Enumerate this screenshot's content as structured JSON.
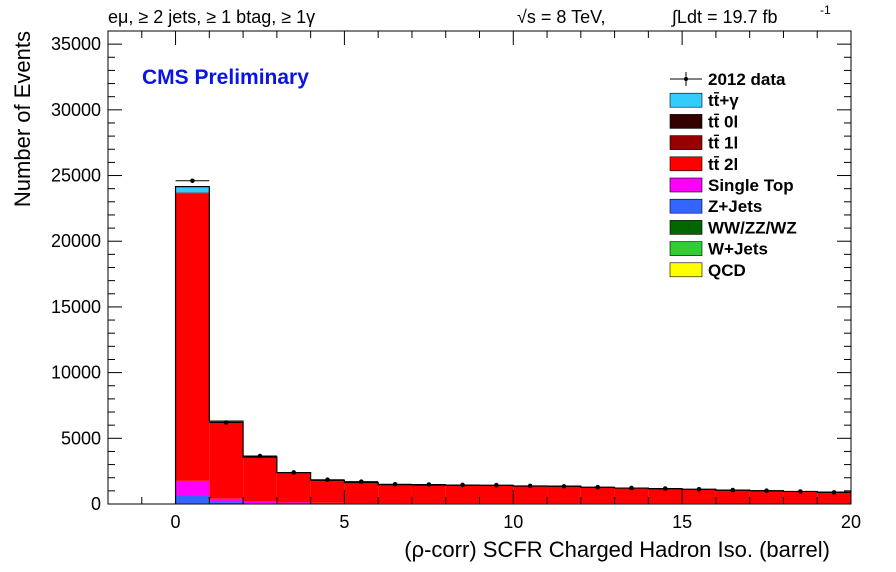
{
  "chart_data": {
    "type": "bar",
    "stacked": true,
    "header_left": "eμ, ≥ 2 jets, ≥ 1 btag, ≥ 1γ",
    "header_energy": "√s = 8 TeV,",
    "header_lumi": "∫Ldt = 19.7 fb",
    "header_lumi_exp": "-1",
    "label": "CMS Preliminary",
    "label_color": "#0a14e6",
    "xlabel": "(ρ-corr) SCFR Charged Hadron Iso. (barrel)",
    "ylabel": "Number of Events",
    "xlim": [
      -2,
      20
    ],
    "ylim": [
      0,
      36000
    ],
    "x_ticks": [
      0,
      5,
      10,
      15,
      20
    ],
    "y_ticks": [
      0,
      5000,
      10000,
      15000,
      20000,
      25000,
      30000,
      35000
    ],
    "bin_width": 1,
    "bins": [
      0,
      1,
      2,
      3,
      4,
      5,
      6,
      7,
      8,
      9,
      10,
      11,
      12,
      13,
      14,
      15,
      16,
      17,
      18,
      19
    ],
    "series": [
      {
        "name": "QCD",
        "color": "#ffff00",
        "values": [
          10,
          5,
          2,
          1,
          1,
          1,
          1,
          1,
          1,
          1,
          1,
          1,
          1,
          1,
          1,
          1,
          1,
          1,
          1,
          1
        ]
      },
      {
        "name": "W+Jets",
        "color": "#33cc33",
        "values": [
          20,
          10,
          5,
          3,
          2,
          2,
          2,
          2,
          2,
          2,
          2,
          2,
          2,
          2,
          2,
          2,
          2,
          2,
          2,
          2
        ]
      },
      {
        "name": "WW/ZZ/WZ",
        "color": "#006600",
        "values": [
          30,
          15,
          8,
          5,
          4,
          3,
          3,
          3,
          3,
          3,
          3,
          3,
          3,
          3,
          3,
          3,
          3,
          3,
          3,
          3
        ]
      },
      {
        "name": "Z+Jets",
        "color": "#3366ff",
        "values": [
          550,
          120,
          50,
          30,
          20,
          15,
          12,
          10,
          10,
          10,
          10,
          10,
          10,
          10,
          10,
          10,
          10,
          10,
          10,
          10
        ]
      },
      {
        "name": "Single Top",
        "color": "#ff00ff",
        "values": [
          1150,
          250,
          130,
          80,
          60,
          50,
          45,
          40,
          40,
          40,
          40,
          40,
          35,
          35,
          35,
          35,
          30,
          30,
          30,
          30
        ]
      },
      {
        "name": "tt̄ 2l",
        "color": "#ff0000",
        "values": [
          21900,
          5850,
          3350,
          2250,
          1700,
          1550,
          1400,
          1380,
          1360,
          1350,
          1300,
          1300,
          1200,
          1150,
          1100,
          1050,
          1000,
          950,
          900,
          850
        ]
      },
      {
        "name": "tt̄ 1l",
        "color": "#990000",
        "values": [
          40,
          20,
          10,
          8,
          6,
          5,
          5,
          5,
          5,
          5,
          5,
          5,
          5,
          5,
          5,
          5,
          5,
          5,
          5,
          5
        ]
      },
      {
        "name": "tt̄ 0l",
        "color": "#330000",
        "values": [
          5,
          2,
          1,
          1,
          1,
          1,
          1,
          1,
          1,
          1,
          1,
          1,
          1,
          1,
          1,
          1,
          1,
          1,
          1,
          1
        ]
      },
      {
        "name": "tt̄+γ",
        "color": "#33ccff",
        "values": [
          450,
          40,
          20,
          10,
          8,
          6,
          5,
          5,
          5,
          5,
          5,
          5,
          5,
          5,
          5,
          5,
          5,
          5,
          5,
          5
        ]
      }
    ],
    "data": {
      "name": "2012 data",
      "values": [
        24600,
        6200,
        3650,
        2400,
        1850,
        1700,
        1500,
        1480,
        1450,
        1430,
        1380,
        1340,
        1280,
        1220,
        1180,
        1120,
        1060,
        1010,
        950,
        880
      ]
    },
    "legend": {
      "placement": "top-right",
      "entries": [
        "2012 data",
        "tt̄+γ",
        "tt̄ 0l",
        "tt̄ 1l",
        "tt̄ 2l",
        "Single Top",
        "Z+Jets",
        "WW/ZZ/WZ",
        "W+Jets",
        "QCD"
      ]
    }
  }
}
